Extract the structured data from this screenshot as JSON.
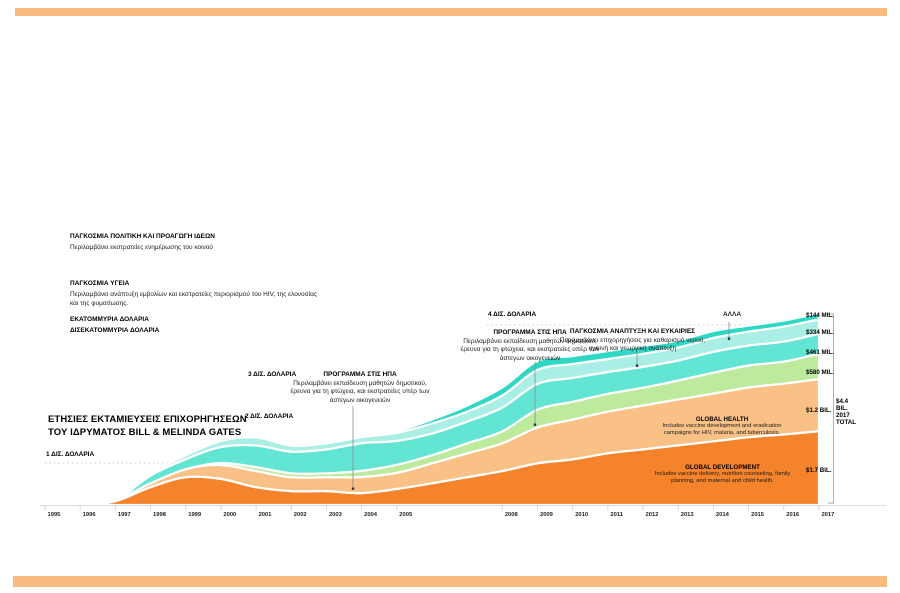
{
  "page": {
    "accent_color": "#F9BC80",
    "background": "#ffffff"
  },
  "legend": {
    "policy_title": "ΠΑΓΚΟΣΜΙΑ ΠΟΛΙΤΙΚΗ ΚΑΙ ΠΡΟΑΓΩΓΗ ΙΔΕΩΝ",
    "policy_sub": "Περιλαμβάνει εκστρατείες ενημέρωσης του κοινού",
    "health_title": "ΠΑΓΚΟΣΜΙΑ ΥΓΕΙΑ",
    "health_sub": "Περιλαμβάνει ανάπτυξη εμβολίων και εκστρατείες περιορισμού του HIV, της ελονοσίας και της φυματίωσης.",
    "units_millions": "ΕΚΑΤΟΜΜΥΡΙΑ ΔΟΛΑΡΙΑ",
    "units_billions": "ΔΙΣΕΚΑΤΟΜΜΥΡΙΑ ΔΟΛΑΡΙΑ"
  },
  "title": {
    "line1": "ΕΤΗΣΙΕΣ ΕΚΤΑΜΙΕΥΣΕΙΣ ΕΠΙΧΟΡΗΓΗΣΕΩΝ",
    "line2": "ΤΟΥ ΙΔΡΥΜΑΤΟΣ BILL & MELINDA GATES"
  },
  "gridline_labels": {
    "g1": "1 ΔΙΣ. ΔΟΛΑΡΙΑ",
    "g2": "2 ΔΙΣ. ΔΟΛΑΡΙΑ",
    "g3": "3 ΔΙΣ. ΔΟΛΑΡΙΑ",
    "g4": "4 ΔΙΣ. ΔΟΛΑΡΙΑ"
  },
  "annotations": {
    "us_program": {
      "title": "ΠΡΟΓΡΑΜΜΑ ΣΤΙΣ ΗΠΑ",
      "body": "Περιλαμβάνει εκπαίδευση μαθητών δημοτικού, έρευνα για τη φτώχεια, και εκστρατείες υπέρ των άστεγων οικογενειών"
    },
    "global_growth": {
      "title": "ΠΑΓΚΟΣΜΙΑ ΑΝΑΠΤΥΞΗ ΚΑΙ ΕΥΚΑΙΡΙΕΣ",
      "body": "Περιλαμβάνει επιχορηγήσεις για καθαρισμό νερού, υγιεινή και γεωργική ανάπτυξη"
    },
    "other": "ΑΛΛΑ",
    "global_health": {
      "title": "GLOBAL HEALTH",
      "body": "Includes vaccine development and eradication campaigns for HIV, malaria, and tuberculosis."
    },
    "global_development": {
      "title": "GLOBAL DEVELOPMENT",
      "body": "Includes vaccine delivery, nutrition counseling, family planning, and maternal and child health."
    }
  },
  "right_labels": {
    "m144": "$144 MIL.",
    "m334": "$334 MIL.",
    "m461": "$461 MIL.",
    "m580": "$580 MIL.",
    "b12": "$1.2 BIL.",
    "b17": "$1.7 BIL."
  },
  "total_block": {
    "l1": "$4.4",
    "l2": "BIL.",
    "l3": "2017",
    "l4": "TOTAL"
  },
  "chart_data": {
    "type": "area",
    "title": "ΕΤΗΣΙΕΣ ΕΚΤΑΜΙΕΥΣΕΙΣ ΕΠΙΧΟΡΗΓΗΣΕΩΝ ΤΟΥ ΙΔΡΥΜΑΤΟΣ BILL & MELINDA GATES",
    "unit": "millions USD (estimated from chart)",
    "x": [
      1995,
      1996,
      1997,
      1998,
      1999,
      2000,
      2001,
      2002,
      2003,
      2004,
      2005,
      2006,
      2007,
      2008,
      2009,
      2010,
      2011,
      2012,
      2013,
      2014,
      2015,
      2016,
      2017
    ],
    "axis_labels": [
      "1995",
      "1996",
      "1997",
      "1998",
      "1999",
      "2000",
      "2001",
      "2002",
      "2003",
      "2004",
      "2005",
      "",
      "",
      "2008",
      "2009",
      "2010",
      "2011",
      "2012",
      "2013",
      "2014",
      "2015",
      "2016",
      "2017"
    ],
    "ylim_billions": [
      0,
      4.4
    ],
    "gridlines_billions": [
      1,
      2,
      3,
      4
    ],
    "grid": false,
    "legend_position": "annotations",
    "total_2017": "$4.4 BIL.",
    "series": [
      {
        "name": "GLOBAL DEVELOPMENT",
        "color": "#F5832B",
        "label_2017": "$1.7 BIL.",
        "values": [
          0,
          0,
          90,
          410,
          640,
          600,
          410,
          320,
          320,
          275,
          370,
          500,
          640,
          780,
          960,
          1050,
          1190,
          1280,
          1375,
          1465,
          1560,
          1625,
          1700
        ]
      },
      {
        "name": "GLOBAL HEALTH",
        "color": "#FAC187",
        "label_2017": "$1.2 BIL.",
        "values": [
          0,
          0,
          20,
          90,
          185,
          320,
          370,
          320,
          320,
          370,
          370,
          460,
          550,
          640,
          825,
          915,
          960,
          1010,
          1055,
          1100,
          1145,
          1170,
          1200
        ]
      },
      {
        "name": "ΠΡΟΓΡΑΜΜΑ ΣΤΙΣ ΗΠΑ (US PROGRAM)",
        "color": "#BDEA9C",
        "label_2017": "$580 MIL.",
        "values": [
          0,
          0,
          0,
          0,
          0,
          45,
          90,
          90,
          90,
          140,
          185,
          185,
          230,
          275,
          410,
          410,
          410,
          410,
          435,
          480,
          505,
          505,
          580
        ]
      },
      {
        "name": "ΠΑΓΚΟΣΜΙΑ ΠΟΛΙΤΙΚΗ ΚΑΙ ΠΡΟΑΓΩΓΗ ΙΔΕΩΝ (GLOBAL POLICY & ADVOCACY)",
        "color": "#62E5D3",
        "label_2017": "$461 MIL.",
        "values": [
          0,
          0,
          0,
          180,
          230,
          370,
          500,
          500,
          550,
          640,
          550,
          500,
          500,
          550,
          595,
          550,
          500,
          480,
          460,
          480,
          460,
          460,
          461
        ]
      },
      {
        "name": "ΠΑΓΚΟΣΜΙΑ ΑΝΑΠΤΥΞΗ ΚΑΙ ΕΥΚΑΙΡΙΕΣ (GLOBAL GROWTH & OPPORTUNITY)",
        "color": "#A9EFE5",
        "label_2017": "$334 MIL.",
        "values": [
          0,
          0,
          0,
          45,
          90,
          140,
          185,
          140,
          140,
          140,
          185,
          230,
          230,
          275,
          320,
          320,
          300,
          300,
          300,
          320,
          320,
          345,
          334
        ]
      },
      {
        "name": "ΑΛΛΑ (OTHER)",
        "color": "#2ED8C5",
        "label_2017": "$144 MIL.",
        "values": [
          0,
          0,
          0,
          0,
          0,
          45,
          45,
          45,
          45,
          45,
          45,
          90,
          140,
          185,
          205,
          185,
          185,
          185,
          160,
          160,
          140,
          140,
          144
        ]
      }
    ]
  }
}
